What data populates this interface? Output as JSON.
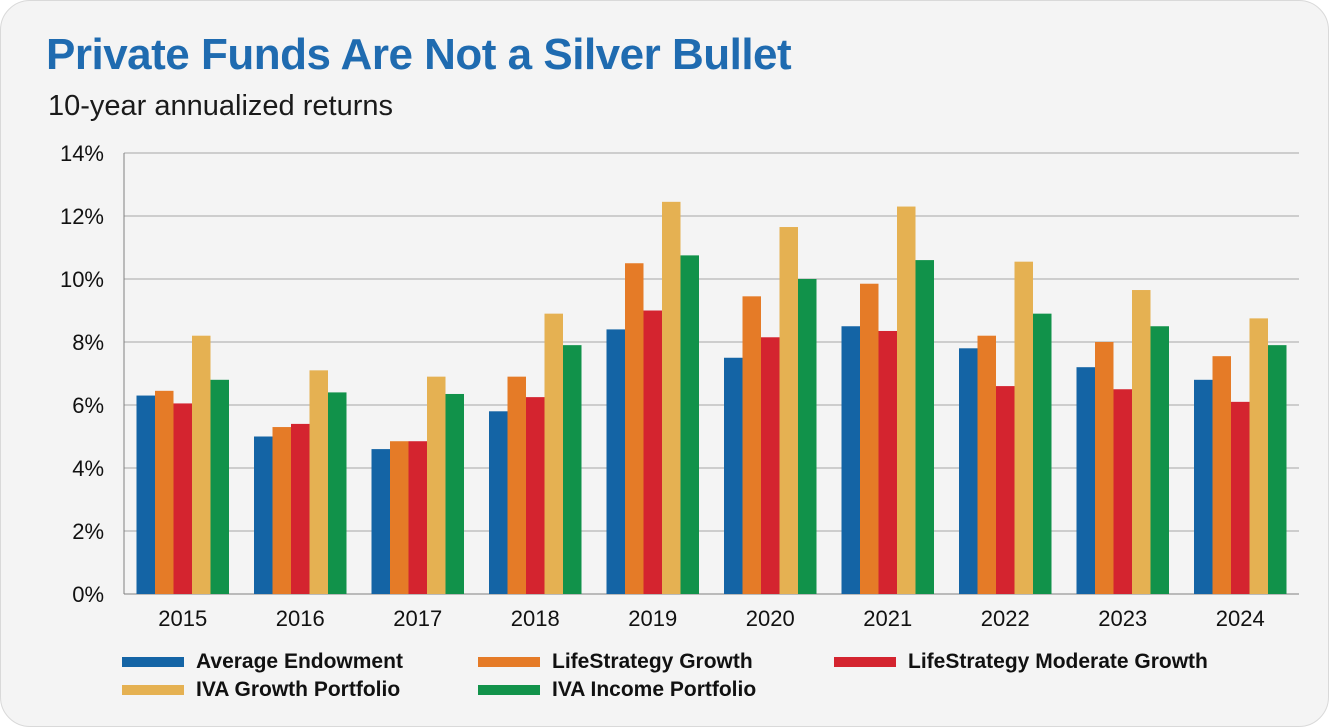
{
  "title": "Private Funds Are Not a Silver Bullet",
  "subtitle": "10-year annualized returns",
  "chart_data": {
    "type": "bar",
    "categories": [
      "2015",
      "2016",
      "2017",
      "2018",
      "2019",
      "2020",
      "2021",
      "2022",
      "2023",
      "2024"
    ],
    "series": [
      {
        "name": "Average Endowment",
        "color": "#1464a5",
        "values": [
          6.3,
          5.0,
          4.6,
          5.8,
          8.4,
          7.5,
          8.5,
          7.8,
          7.2,
          6.8
        ]
      },
      {
        "name": "LifeStrategy Growth",
        "color": "#e57b27",
        "values": [
          6.45,
          5.3,
          4.85,
          6.9,
          10.5,
          9.45,
          9.85,
          8.2,
          8.0,
          7.55
        ]
      },
      {
        "name": "LifeStrategy Moderate Growth",
        "color": "#d4242f",
        "values": [
          6.05,
          5.4,
          4.85,
          6.25,
          9.0,
          8.15,
          8.35,
          6.6,
          6.5,
          6.1
        ]
      },
      {
        "name": "IVA Growth Portfolio",
        "color": "#e5b152",
        "values": [
          8.2,
          7.1,
          6.9,
          8.9,
          12.45,
          11.65,
          12.3,
          10.55,
          9.65,
          8.75
        ]
      },
      {
        "name": "IVA Income Portfolio",
        "color": "#11924a",
        "values": [
          6.8,
          6.4,
          6.35,
          7.9,
          10.75,
          10.0,
          10.6,
          8.9,
          8.5,
          7.9
        ]
      }
    ],
    "yticks": [
      "0%",
      "2%",
      "4%",
      "6%",
      "8%",
      "10%",
      "12%",
      "14%"
    ],
    "ylim": [
      0,
      14
    ],
    "grid": true,
    "legend_position": "bottom"
  }
}
